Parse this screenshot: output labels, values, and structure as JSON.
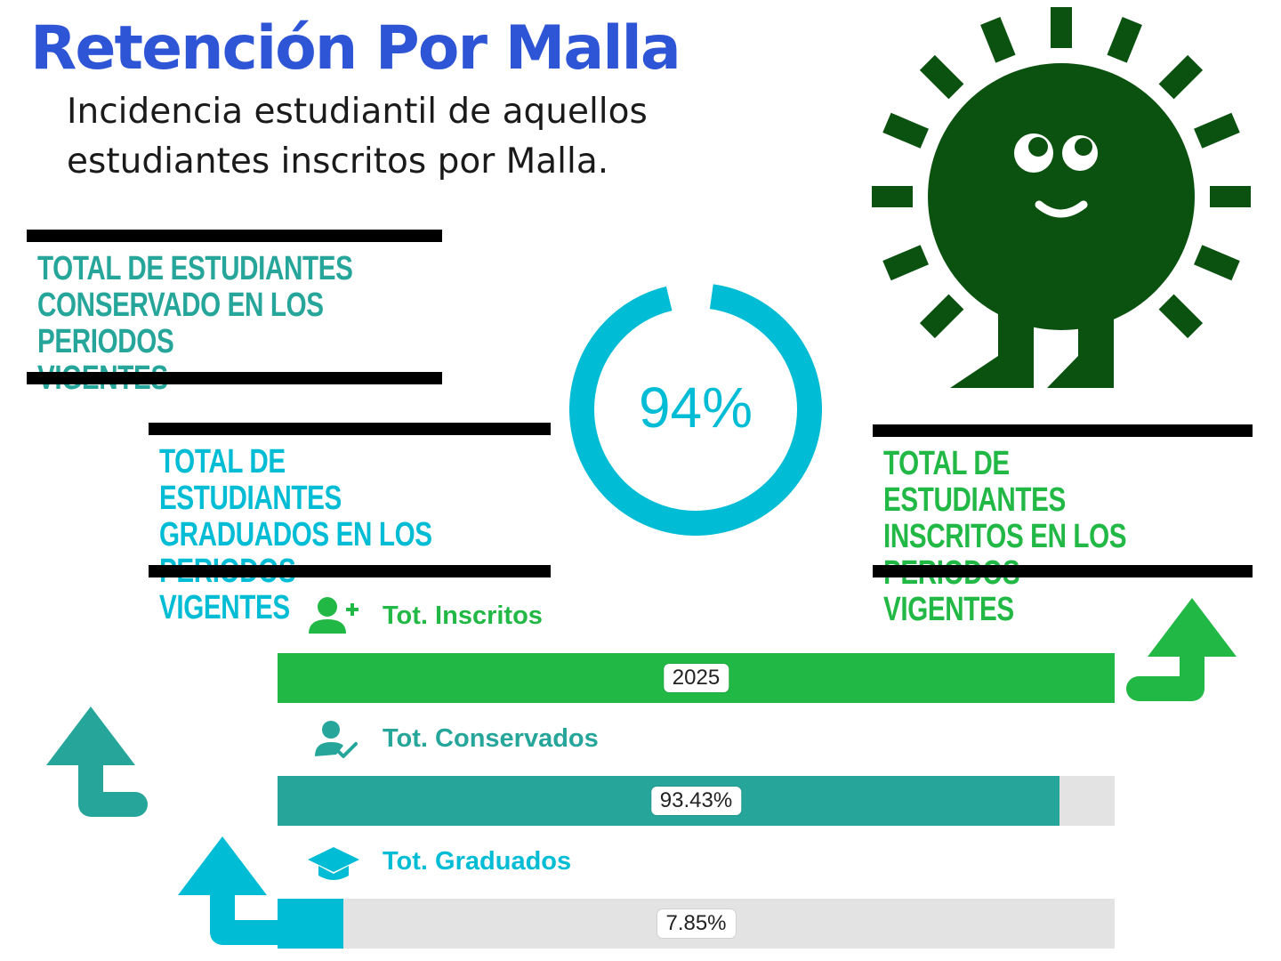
{
  "header": {
    "title": "Retención Por Malla",
    "subtitle": "Incidencia estudiantil de aquellos estudiantes inscritos por Malla."
  },
  "colors": {
    "title": "#2e55d6",
    "teal": "#26a69a",
    "cyan": "#00bcd4",
    "green": "#22b845",
    "dark_green": "#0b5210",
    "track": "#e3e3e3"
  },
  "blocks": {
    "conservado": "TOTAL DE ESTUDIANTES\nCONSERVADO EN LOS PERIODOS\nVIGENTES",
    "graduados": "TOTAL DE ESTUDIANTES\nGRADUADOS EN LOS PERIODOS\nVIGENTES",
    "inscritos": "TOTAL DE ESTUDIANTES\nINSCRITOS EN LOS PERIODOS\nVIGENTES"
  },
  "donut": {
    "value_label": "94%",
    "percent": 94
  },
  "metrics": {
    "inscritos": {
      "label": "Tot. Inscritos",
      "value_label": "2025",
      "fill_percent": 100,
      "icon": "user-add-icon"
    },
    "conservados": {
      "label": "Tot. Conservados",
      "value_label": "93.43%",
      "fill_percent": 93.43,
      "icon": "user-check-icon"
    },
    "graduados": {
      "label": "Tot. Graduados",
      "value_label": "7.85%",
      "fill_percent": 7.85,
      "icon": "graduation-cap-icon"
    }
  },
  "illustration": {
    "icon": "smiling-sun-icon"
  }
}
